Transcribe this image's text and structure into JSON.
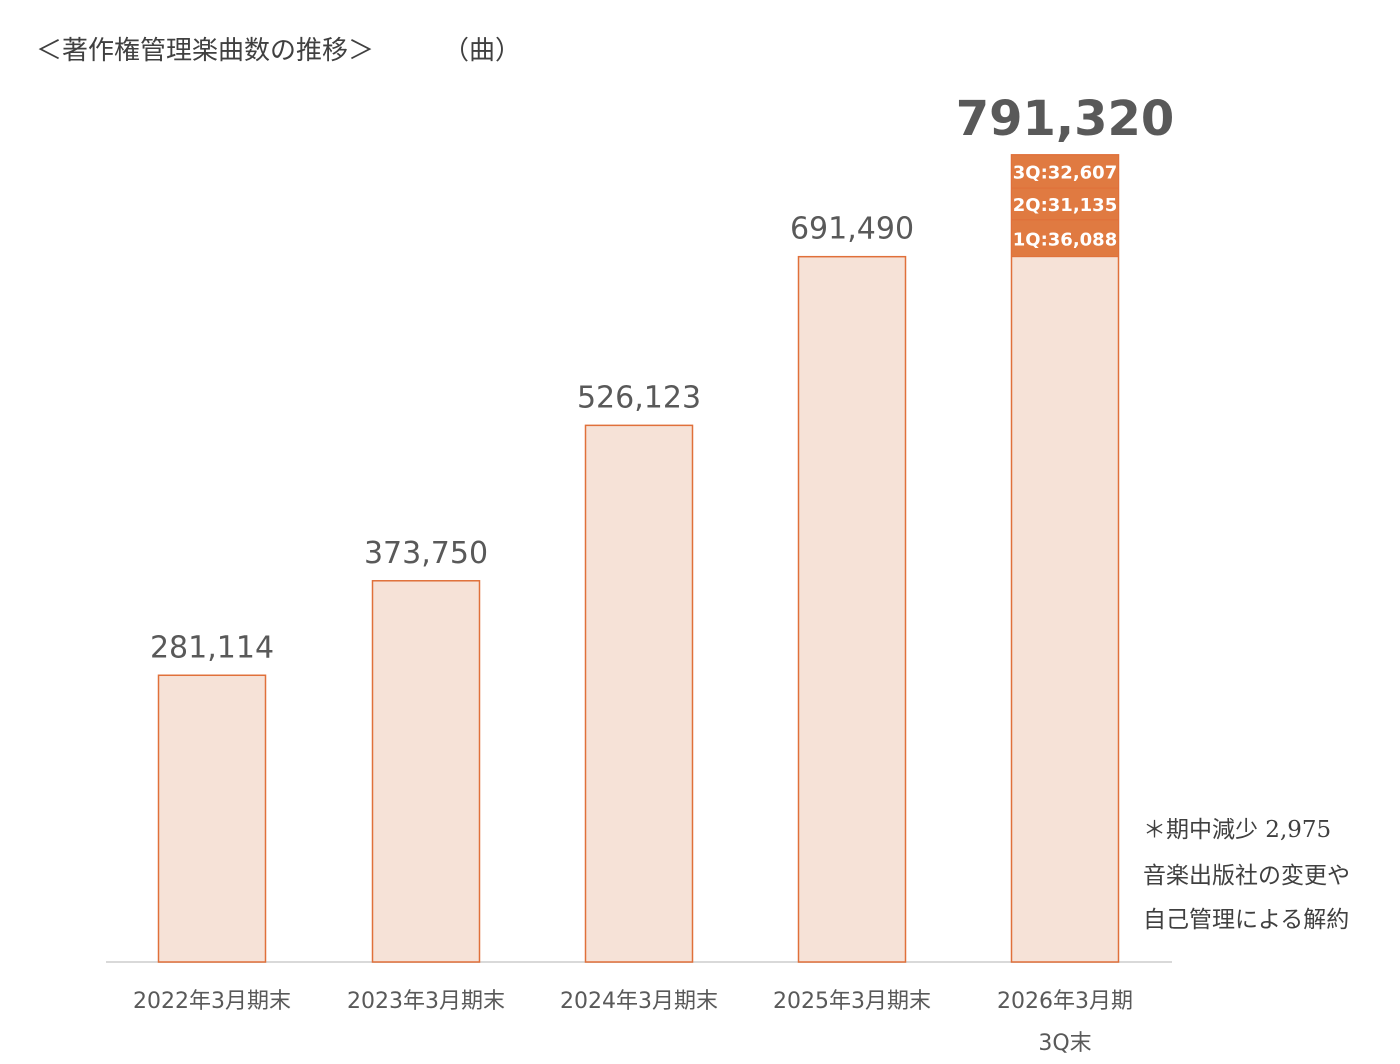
{
  "header": {
    "title": "＜著作権管理楽曲数の推移＞",
    "unit": "（曲）"
  },
  "chart_data": {
    "type": "bar",
    "categories": [
      "2022年3月期末",
      "2023年3月期末",
      "2024年3月期末",
      "2025年3月期末",
      "2026年3月期\n3Q末"
    ],
    "values": [
      281114,
      373750,
      526123,
      691490,
      791320
    ],
    "value_labels": [
      "281,114",
      "373,750",
      "526,123",
      "691,490",
      "791,320"
    ],
    "ylim": [
      0,
      800000
    ],
    "grid": false,
    "legend": "none",
    "last_bar_segments": [
      {
        "label": "1Q:36,088",
        "value": 36088
      },
      {
        "label": "2Q:31,135",
        "value": 31135
      },
      {
        "label": "3Q:32,607",
        "value": 32607
      }
    ],
    "colors": {
      "bar_fill": "#f6e2d7",
      "bar_stroke": "#e0703a",
      "segment_fill": "#e07a41",
      "segment_text": "#ffffff",
      "axis": "#d9d9d9",
      "label": "#595959"
    }
  },
  "note": {
    "lines": [
      "＊期中減少 2,975",
      "音楽出版社の変更や",
      "自己管理による解約"
    ]
  }
}
